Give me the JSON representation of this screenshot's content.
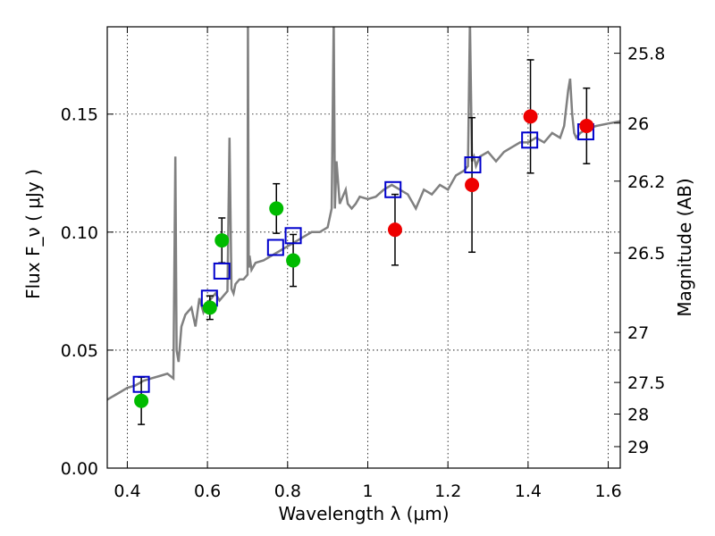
{
  "chart_data": {
    "type": "scatter",
    "title": "",
    "xlabel": "Wavelength  λ (μm)",
    "ylabel": "Flux  F_ν  ( μJy )",
    "y2label": "Magnitude (AB)",
    "xlim": [
      0.35,
      1.63
    ],
    "ylim": [
      0.0,
      0.187
    ],
    "grid": true,
    "x_ticks": [
      0.4,
      0.6,
      0.8,
      1.0,
      1.2,
      1.4,
      1.6
    ],
    "x_tick_labels": [
      "0.4",
      "0.6",
      "0.8",
      "1",
      "1.2",
      "1.4",
      "1.6"
    ],
    "y_ticks": [
      0.0,
      0.05,
      0.1,
      0.15
    ],
    "y_tick_labels": [
      "0.00",
      "0.05",
      "0.10",
      "0.15"
    ],
    "y2_ticks": [
      {
        "label": "25.8",
        "flux": 0.1758
      },
      {
        "label": "26",
        "flux": 0.1462
      },
      {
        "label": "26.2",
        "flux": 0.1216
      },
      {
        "label": "26.5",
        "flux": 0.0912
      },
      {
        "label": "27",
        "flux": 0.0575
      },
      {
        "label": "27.5",
        "flux": 0.0363
      },
      {
        "label": "28",
        "flux": 0.0229
      },
      {
        "label": "29",
        "flux": 0.0091
      }
    ],
    "model_spectrum": {
      "color": "#808080",
      "x": [
        0.35,
        0.36,
        0.38,
        0.4,
        0.42,
        0.44,
        0.46,
        0.48,
        0.5,
        0.515,
        0.52,
        0.523,
        0.528,
        0.535,
        0.545,
        0.56,
        0.57,
        0.58,
        0.59,
        0.6,
        0.61,
        0.62,
        0.63,
        0.64,
        0.65,
        0.655,
        0.66,
        0.665,
        0.67,
        0.68,
        0.69,
        0.7,
        0.701,
        0.703,
        0.705,
        0.71,
        0.72,
        0.74,
        0.76,
        0.78,
        0.8,
        0.82,
        0.84,
        0.86,
        0.88,
        0.9,
        0.91,
        0.915,
        0.918,
        0.922,
        0.93,
        0.945,
        0.95,
        0.96,
        0.97,
        0.98,
        1.0,
        1.02,
        1.04,
        1.06,
        1.08,
        1.1,
        1.12,
        1.14,
        1.16,
        1.18,
        1.2,
        1.22,
        1.24,
        1.25,
        1.255,
        1.26,
        1.265,
        1.27,
        1.28,
        1.3,
        1.32,
        1.34,
        1.36,
        1.38,
        1.4,
        1.42,
        1.44,
        1.46,
        1.48,
        1.49,
        1.5,
        1.505,
        1.51,
        1.515,
        1.52,
        1.53,
        1.55,
        1.57,
        1.6,
        1.63
      ],
      "y": [
        0.029,
        0.03,
        0.032,
        0.034,
        0.035,
        0.037,
        0.038,
        0.039,
        0.04,
        0.038,
        0.132,
        0.05,
        0.045,
        0.06,
        0.065,
        0.068,
        0.06,
        0.072,
        0.066,
        0.07,
        0.072,
        0.074,
        0.071,
        0.073,
        0.075,
        0.14,
        0.076,
        0.074,
        0.078,
        0.08,
        0.08,
        0.082,
        0.19,
        0.085,
        0.09,
        0.084,
        0.087,
        0.088,
        0.09,
        0.092,
        0.094,
        0.096,
        0.098,
        0.1,
        0.1,
        0.102,
        0.11,
        0.19,
        0.11,
        0.13,
        0.112,
        0.118,
        0.112,
        0.11,
        0.112,
        0.115,
        0.114,
        0.115,
        0.118,
        0.12,
        0.118,
        0.116,
        0.11,
        0.118,
        0.116,
        0.12,
        0.118,
        0.124,
        0.126,
        0.128,
        0.19,
        0.13,
        0.132,
        0.128,
        0.132,
        0.134,
        0.13,
        0.134,
        0.136,
        0.138,
        0.138,
        0.14,
        0.138,
        0.142,
        0.14,
        0.145,
        0.16,
        0.165,
        0.15,
        0.142,
        0.14,
        0.142,
        0.144,
        0.145,
        0.146,
        0.147
      ]
    },
    "model_photometry": {
      "marker": "open-square",
      "color": "#0000cc",
      "points": [
        {
          "x": 0.435,
          "y": 0.0355
        },
        {
          "x": 0.605,
          "y": 0.072
        },
        {
          "x": 0.636,
          "y": 0.0835
        },
        {
          "x": 0.77,
          "y": 0.0935
        },
        {
          "x": 0.814,
          "y": 0.0985
        },
        {
          "x": 1.063,
          "y": 0.118
        },
        {
          "x": 1.262,
          "y": 0.1285
        },
        {
          "x": 1.404,
          "y": 0.139
        },
        {
          "x": 1.544,
          "y": 0.1425
        }
      ]
    },
    "observed_green": {
      "marker": "filled-circle",
      "color": "#00bb00",
      "points": [
        {
          "x": 0.435,
          "y": 0.0285,
          "err": 0.01
        },
        {
          "x": 0.606,
          "y": 0.068,
          "err": 0.005
        },
        {
          "x": 0.636,
          "y": 0.0965,
          "err": 0.0095
        },
        {
          "x": 0.772,
          "y": 0.11,
          "err": 0.0105
        },
        {
          "x": 0.814,
          "y": 0.088,
          "err": 0.011
        }
      ]
    },
    "observed_red": {
      "marker": "filled-circle",
      "color": "#ee0000",
      "points": [
        {
          "x": 1.068,
          "y": 0.101,
          "err": 0.015
        },
        {
          "x": 1.26,
          "y": 0.12,
          "err": 0.0285
        },
        {
          "x": 1.406,
          "y": 0.149,
          "err": 0.024
        },
        {
          "x": 1.546,
          "y": 0.145,
          "err": 0.016
        }
      ]
    }
  }
}
